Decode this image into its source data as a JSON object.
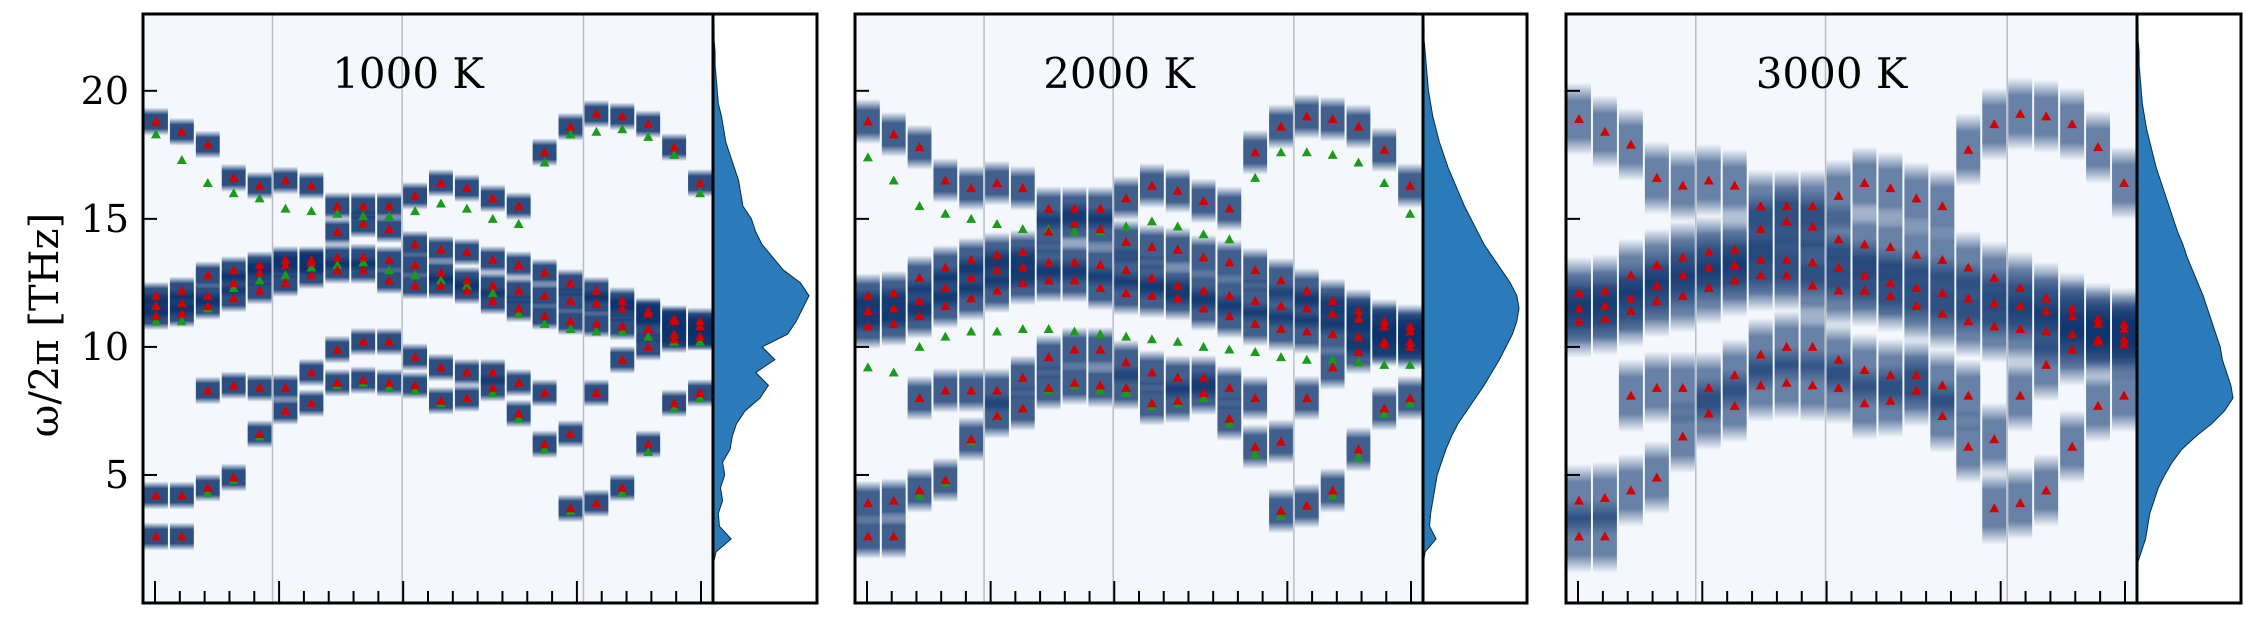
{
  "chart_data": {
    "type": "heatmap",
    "ylabel": "ω/2π [THz]",
    "ylim": [
      0,
      23
    ],
    "yticks": [
      5,
      10,
      15,
      20
    ],
    "xlabel": "",
    "colormap": "Blues",
    "colors": {
      "dft_markers": "#d40000",
      "fit_markers": "#1a9b1a",
      "dos_fill": "#2b7bba",
      "band_dark": "#08306b",
      "background": "#f4f8fc"
    },
    "x_segments": 20,
    "high_symmetry_segment_positions": [
      0,
      5,
      10,
      17,
      22
    ],
    "panels": [
      {
        "label": "1000 K",
        "branches": [
          {
            "name": "b0",
            "values": [
              2.6,
              2.6,
              4.5,
              4.9,
              6.6,
              7.5,
              7.8,
              8.6,
              8.7,
              8.6,
              8.5,
              7.9,
              8.0,
              8.4,
              7.4,
              6.2,
              3.7,
              3.9,
              4.5,
              6.2,
              7.8,
              8.2
            ]
          },
          {
            "name": "b1",
            "values": [
              4.2,
              4.2,
              8.3,
              8.5,
              8.4,
              8.4,
              9.0,
              9.9,
              10.2,
              10.2,
              9.6,
              9.2,
              9.0,
              9.0,
              8.6,
              8.2,
              6.6,
              8.2,
              9.5,
              10.0,
              10.3,
              10.4
            ]
          },
          {
            "name": "b2",
            "values": [
              11.2,
              11.3,
              11.6,
              11.9,
              12.2,
              12.5,
              12.8,
              13.0,
              13.0,
              12.6,
              12.4,
              12.4,
              12.2,
              11.8,
              11.5,
              11.2,
              11.0,
              10.9,
              10.8,
              10.7,
              10.5,
              10.4
            ]
          },
          {
            "name": "b3",
            "values": [
              11.6,
              11.7,
              12.0,
              12.5,
              12.9,
              13.2,
              13.3,
              13.5,
              13.5,
              13.4,
              13.2,
              12.9,
              12.6,
              12.4,
              12.2,
              12.0,
              11.8,
              11.7,
              11.5,
              11.3,
              11.0,
              10.8
            ]
          },
          {
            "name": "b4",
            "values": [
              12.0,
              12.2,
              12.8,
              13.0,
              13.2,
              13.4,
              13.4,
              14.5,
              14.8,
              14.6,
              14.0,
              13.8,
              13.7,
              13.4,
              13.2,
              12.9,
              12.5,
              12.2,
              11.8,
              11.4,
              11.1,
              11.0
            ]
          },
          {
            "name": "b5",
            "values": [
              18.8,
              18.4,
              17.9,
              16.6,
              16.3,
              16.5,
              16.3,
              15.5,
              15.5,
              15.5,
              15.9,
              16.4,
              16.2,
              15.8,
              15.5,
              17.6,
              18.6,
              19.1,
              19.0,
              18.7,
              17.8,
              16.4
            ]
          }
        ],
        "fit_branches": [
          {
            "name": "f0",
            "values": [
              2.6,
              2.6,
              4.3,
              4.8,
              6.5,
              7.5,
              7.8,
              8.5,
              8.6,
              8.4,
              8.3,
              7.8,
              8.0,
              8.2,
              7.2,
              6.0,
              3.6,
              3.9,
              4.3,
              5.9,
              7.6,
              8.0
            ]
          },
          {
            "name": "f1",
            "values": [
              11.0,
              11.0,
              11.5,
              12.3,
              12.6,
              12.8,
              13.1,
              13.2,
              13.3,
              13.0,
              12.8,
              12.6,
              12.4,
              12.1,
              11.3,
              10.9,
              10.7,
              10.6,
              10.6,
              10.4,
              10.2,
              10.2
            ]
          },
          {
            "name": "f2",
            "values": [
              18.3,
              17.3,
              16.4,
              16.0,
              15.8,
              15.4,
              15.3,
              15.2,
              15.1,
              15.1,
              15.3,
              15.6,
              15.4,
              15.0,
              14.8,
              17.2,
              18.3,
              18.4,
              18.5,
              18.2,
              17.5,
              16.0
            ]
          }
        ],
        "dos": {
          "energy": [
            0.5,
            1,
            1.5,
            2,
            2.5,
            3,
            3.5,
            4,
            4.5,
            5,
            5.5,
            6,
            6.5,
            7,
            7.5,
            8,
            8.5,
            9,
            9.5,
            10,
            10.5,
            11,
            11.5,
            12,
            12.5,
            13,
            13.5,
            14,
            14.5,
            15,
            15.5,
            16,
            16.5,
            17,
            17.5,
            18,
            18.5,
            19,
            19.5,
            20,
            20.5,
            21,
            21.5,
            22,
            22.5
          ],
          "density": [
            0,
            0,
            0,
            0.03,
            0.17,
            0.06,
            0.05,
            0.09,
            0.07,
            0.11,
            0.09,
            0.16,
            0.18,
            0.22,
            0.3,
            0.44,
            0.52,
            0.4,
            0.58,
            0.46,
            0.7,
            0.78,
            0.84,
            0.9,
            0.82,
            0.66,
            0.56,
            0.46,
            0.4,
            0.36,
            0.28,
            0.26,
            0.24,
            0.2,
            0.16,
            0.12,
            0.1,
            0.08,
            0.05,
            0.04,
            0.03,
            0.02,
            0.02,
            0.01,
            0.01
          ]
        }
      },
      {
        "label": "2000 K",
        "branches": [
          {
            "name": "b0",
            "values": [
              2.6,
              2.6,
              4.4,
              4.8,
              6.4,
              7.3,
              7.6,
              8.4,
              8.6,
              8.5,
              8.4,
              7.8,
              7.9,
              8.2,
              7.2,
              6.1,
              3.6,
              3.8,
              4.4,
              6.0,
              7.6,
              8.0
            ]
          },
          {
            "name": "b1",
            "values": [
              3.9,
              4.0,
              8.0,
              8.3,
              8.3,
              8.3,
              8.8,
              9.6,
              9.9,
              9.9,
              9.4,
              9.0,
              8.8,
              8.8,
              8.4,
              8.0,
              6.3,
              8.0,
              9.2,
              9.8,
              10.1,
              10.2
            ]
          },
          {
            "name": "b2",
            "values": [
              10.8,
              10.9,
              11.2,
              11.6,
              11.9,
              12.2,
              12.5,
              12.6,
              12.6,
              12.3,
              12.1,
              12.0,
              11.9,
              11.5,
              11.2,
              10.9,
              10.7,
              10.6,
              10.5,
              10.4,
              10.2,
              10.0
            ]
          },
          {
            "name": "b3",
            "values": [
              11.4,
              11.5,
              11.8,
              12.3,
              12.7,
              13.0,
              13.1,
              13.3,
              13.3,
              13.2,
              13.0,
              12.7,
              12.4,
              12.2,
              12.0,
              11.8,
              11.6,
              11.5,
              11.3,
              11.1,
              10.8,
              10.6
            ]
          },
          {
            "name": "b4",
            "values": [
              12.0,
              12.1,
              12.7,
              13.1,
              13.4,
              13.6,
              13.7,
              14.5,
              14.8,
              14.6,
              14.1,
              13.9,
              13.8,
              13.5,
              13.3,
              13.0,
              12.6,
              12.2,
              11.8,
              11.4,
              11.0,
              10.8
            ]
          },
          {
            "name": "b5",
            "values": [
              18.8,
              18.3,
              17.8,
              16.5,
              16.2,
              16.4,
              16.2,
              15.4,
              15.4,
              15.4,
              15.8,
              16.3,
              16.1,
              15.7,
              15.4,
              17.6,
              18.6,
              19.0,
              18.9,
              18.6,
              17.7,
              16.3
            ]
          }
        ],
        "fit_branches": [
          {
            "name": "f0",
            "values": [
              2.6,
              2.6,
              4.2,
              4.7,
              6.3,
              7.3,
              7.6,
              8.3,
              8.5,
              8.3,
              8.2,
              7.7,
              7.8,
              8.0,
              7.0,
              5.8,
              3.4,
              3.8,
              4.2,
              5.7,
              7.4,
              7.8
            ]
          },
          {
            "name": "f1",
            "values": [
              9.2,
              9.0,
              10.0,
              10.4,
              10.6,
              10.6,
              10.7,
              10.7,
              10.6,
              10.5,
              10.4,
              10.3,
              10.2,
              10.0,
              9.9,
              9.8,
              9.6,
              9.5,
              9.5,
              9.4,
              9.3,
              9.3
            ]
          },
          {
            "name": "f2",
            "values": [
              17.4,
              16.5,
              15.5,
              15.2,
              15.0,
              14.8,
              14.6,
              14.6,
              14.5,
              14.5,
              14.7,
              14.9,
              14.7,
              14.4,
              14.2,
              16.6,
              17.6,
              17.6,
              17.5,
              17.2,
              16.4,
              15.2
            ]
          }
        ],
        "dos": {
          "energy": [
            0.5,
            1,
            1.5,
            2,
            2.5,
            3,
            3.5,
            4,
            4.5,
            5,
            5.5,
            6,
            6.5,
            7,
            7.5,
            8,
            8.5,
            9,
            9.5,
            10,
            10.5,
            11,
            11.5,
            12,
            12.5,
            13,
            13.5,
            14,
            14.5,
            15,
            15.5,
            16,
            16.5,
            17,
            17.5,
            18,
            18.5,
            19,
            19.5,
            20,
            20.5,
            21,
            21.5,
            22,
            22.5
          ],
          "density": [
            0,
            0,
            0,
            0.02,
            0.12,
            0.06,
            0.07,
            0.09,
            0.11,
            0.13,
            0.17,
            0.21,
            0.26,
            0.32,
            0.4,
            0.48,
            0.56,
            0.63,
            0.7,
            0.76,
            0.82,
            0.86,
            0.88,
            0.86,
            0.8,
            0.72,
            0.64,
            0.56,
            0.5,
            0.44,
            0.38,
            0.33,
            0.28,
            0.23,
            0.19,
            0.15,
            0.12,
            0.09,
            0.07,
            0.05,
            0.04,
            0.03,
            0.02,
            0.01,
            0.01
          ]
        }
      },
      {
        "label": "3000 K",
        "branches": [
          {
            "name": "b0",
            "values": [
              2.6,
              2.6,
              4.4,
              4.9,
              6.5,
              7.4,
              7.7,
              8.5,
              8.6,
              8.5,
              8.4,
              7.8,
              7.9,
              8.3,
              7.3,
              6.1,
              3.7,
              3.9,
              4.4,
              6.1,
              7.7,
              8.1
            ]
          },
          {
            "name": "b1",
            "values": [
              4.0,
              4.1,
              8.1,
              8.4,
              8.4,
              8.4,
              8.9,
              9.7,
              10.0,
              10.0,
              9.5,
              9.1,
              8.9,
              8.9,
              8.5,
              8.1,
              6.4,
              8.1,
              9.3,
              9.9,
              10.2,
              10.3
            ]
          },
          {
            "name": "b2",
            "values": [
              11.0,
              11.1,
              11.4,
              11.8,
              12.0,
              12.3,
              12.6,
              12.8,
              12.8,
              12.4,
              12.2,
              12.2,
              12.0,
              11.6,
              11.3,
              11.0,
              10.8,
              10.7,
              10.6,
              10.5,
              10.3,
              10.1
            ]
          },
          {
            "name": "b3",
            "values": [
              11.5,
              11.6,
              11.9,
              12.4,
              12.8,
              13.1,
              13.2,
              13.4,
              13.4,
              13.3,
              13.1,
              12.8,
              12.5,
              12.3,
              12.1,
              11.9,
              11.7,
              11.6,
              11.4,
              11.2,
              10.9,
              10.7
            ]
          },
          {
            "name": "b4",
            "values": [
              12.1,
              12.2,
              12.8,
              13.2,
              13.5,
              13.7,
              13.8,
              14.6,
              14.9,
              14.7,
              14.2,
              14.0,
              13.9,
              13.6,
              13.4,
              13.1,
              12.7,
              12.3,
              11.9,
              11.5,
              11.1,
              10.9
            ]
          },
          {
            "name": "b5",
            "values": [
              18.9,
              18.4,
              17.9,
              16.6,
              16.3,
              16.5,
              16.3,
              15.5,
              15.5,
              15.5,
              15.9,
              16.4,
              16.2,
              15.8,
              15.5,
              17.7,
              18.7,
              19.1,
              19.0,
              18.7,
              17.8,
              16.4
            ]
          }
        ],
        "fit_branches": [],
        "dos": {
          "energy": [
            0.5,
            1,
            1.5,
            2,
            2.5,
            3,
            3.5,
            4,
            4.5,
            5,
            5.5,
            6,
            6.5,
            7,
            7.5,
            8,
            8.5,
            9,
            9.5,
            10,
            10.5,
            11,
            11.5,
            12,
            12.5,
            13,
            13.5,
            14,
            14.5,
            15,
            15.5,
            16,
            16.5,
            17,
            17.5,
            18,
            18.5,
            19,
            19.5,
            20,
            20.5,
            21,
            21.5,
            22,
            22.5
          ],
          "density": [
            0,
            0,
            0,
            0.04,
            0.08,
            0.1,
            0.12,
            0.16,
            0.2,
            0.26,
            0.33,
            0.42,
            0.55,
            0.7,
            0.82,
            0.9,
            0.88,
            0.84,
            0.8,
            0.78,
            0.74,
            0.7,
            0.66,
            0.62,
            0.57,
            0.52,
            0.47,
            0.43,
            0.38,
            0.34,
            0.3,
            0.26,
            0.22,
            0.18,
            0.15,
            0.12,
            0.09,
            0.07,
            0.05,
            0.04,
            0.03,
            0.02,
            0.02,
            0.01,
            0.01
          ]
        }
      }
    ]
  }
}
